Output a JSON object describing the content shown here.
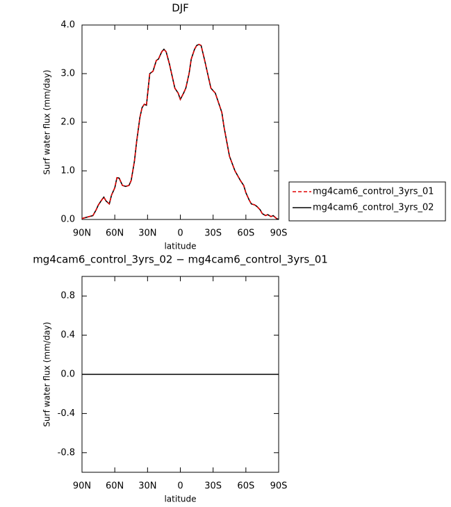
{
  "chart_data": [
    {
      "type": "line",
      "title": "DJF",
      "xlabel": "latitude",
      "ylabel": "Surf water flux (mm/day)",
      "x": [
        90,
        85,
        80,
        77,
        75,
        72,
        70,
        68,
        65,
        63,
        60,
        58,
        56,
        53,
        50,
        47,
        45,
        42,
        40,
        37,
        35,
        33,
        31,
        28,
        25,
        22,
        20,
        17,
        15,
        13,
        10,
        7,
        5,
        2,
        0,
        -3,
        -5,
        -8,
        -10,
        -13,
        -15,
        -17,
        -19,
        -22,
        -25,
        -28,
        -30,
        -32,
        -35,
        -38,
        -40,
        -45,
        -50,
        -55,
        -58,
        -60,
        -63,
        -65,
        -68,
        -70,
        -73,
        -75,
        -78,
        -80,
        -83,
        -85,
        -88,
        -90
      ],
      "series": [
        {
          "name": "mg4cam6_control_3yrs_01",
          "color": "#e00000",
          "dash": true,
          "values": [
            0.02,
            0.05,
            0.08,
            0.2,
            0.3,
            0.4,
            0.46,
            0.38,
            0.32,
            0.5,
            0.65,
            0.86,
            0.85,
            0.7,
            0.68,
            0.7,
            0.8,
            1.2,
            1.6,
            2.1,
            2.3,
            2.37,
            2.35,
            3.0,
            3.05,
            3.27,
            3.3,
            3.45,
            3.5,
            3.45,
            3.2,
            2.9,
            2.7,
            2.6,
            2.47,
            2.6,
            2.7,
            3.0,
            3.3,
            3.5,
            3.58,
            3.6,
            3.58,
            3.3,
            3.0,
            2.7,
            2.65,
            2.6,
            2.4,
            2.2,
            1.9,
            1.3,
            1.0,
            0.8,
            0.7,
            0.55,
            0.4,
            0.32,
            0.3,
            0.27,
            0.2,
            0.12,
            0.08,
            0.1,
            0.06,
            0.08,
            0.02,
            0.0
          ]
        },
        {
          "name": "mg4cam6_control_3yrs_02",
          "color": "#000000",
          "dash": false,
          "values": [
            0.02,
            0.05,
            0.08,
            0.2,
            0.3,
            0.4,
            0.46,
            0.38,
            0.32,
            0.5,
            0.65,
            0.86,
            0.85,
            0.7,
            0.68,
            0.7,
            0.8,
            1.2,
            1.6,
            2.1,
            2.3,
            2.37,
            2.35,
            3.0,
            3.05,
            3.27,
            3.3,
            3.45,
            3.5,
            3.45,
            3.2,
            2.9,
            2.7,
            2.6,
            2.47,
            2.6,
            2.7,
            3.0,
            3.3,
            3.5,
            3.58,
            3.6,
            3.58,
            3.3,
            3.0,
            2.7,
            2.65,
            2.6,
            2.4,
            2.2,
            1.9,
            1.3,
            1.0,
            0.8,
            0.7,
            0.55,
            0.4,
            0.32,
            0.3,
            0.27,
            0.2,
            0.12,
            0.08,
            0.1,
            0.06,
            0.08,
            0.02,
            0.0
          ]
        }
      ],
      "xlim": [
        90,
        -90
      ],
      "xticks": [
        {
          "value": 90,
          "label": "90N"
        },
        {
          "value": 60,
          "label": "60N"
        },
        {
          "value": 30,
          "label": "30N"
        },
        0,
        {
          "value": -30,
          "label": "30S"
        },
        {
          "value": -60,
          "label": "60S"
        },
        {
          "value": -90,
          "label": "90S"
        }
      ],
      "ylim": [
        0,
        4
      ],
      "yticks": [
        {
          "value": 0,
          "label": "0.0"
        },
        {
          "value": 1,
          "label": "1.0"
        },
        {
          "value": 2,
          "label": "2.0"
        },
        {
          "value": 3,
          "label": "3.0"
        },
        {
          "value": 4,
          "label": "4.0"
        }
      ],
      "legend": "right"
    },
    {
      "type": "line",
      "title": "mg4cam6_control_3yrs_02 − mg4cam6_control_3yrs_01",
      "xlabel": "latitude",
      "ylabel": "Surf water flux (mm/day)",
      "x": [
        90,
        -90
      ],
      "series": [
        {
          "color": "#000000",
          "dash": false,
          "values": [
            0,
            0
          ]
        }
      ],
      "xlim": [
        90,
        -90
      ],
      "xticks": [
        {
          "value": 90,
          "label": "90N"
        },
        {
          "value": 60,
          "label": "60N"
        },
        {
          "value": 30,
          "label": "30N"
        },
        0,
        {
          "value": -30,
          "label": "30S"
        },
        {
          "value": -60,
          "label": "60S"
        },
        {
          "value": -90,
          "label": "90S"
        }
      ],
      "ylim": [
        -1,
        1
      ],
      "yticks": [
        0.8,
        0.4,
        {
          "value": 0,
          "label": "0.0"
        },
        -0.4,
        -0.8
      ]
    }
  ]
}
